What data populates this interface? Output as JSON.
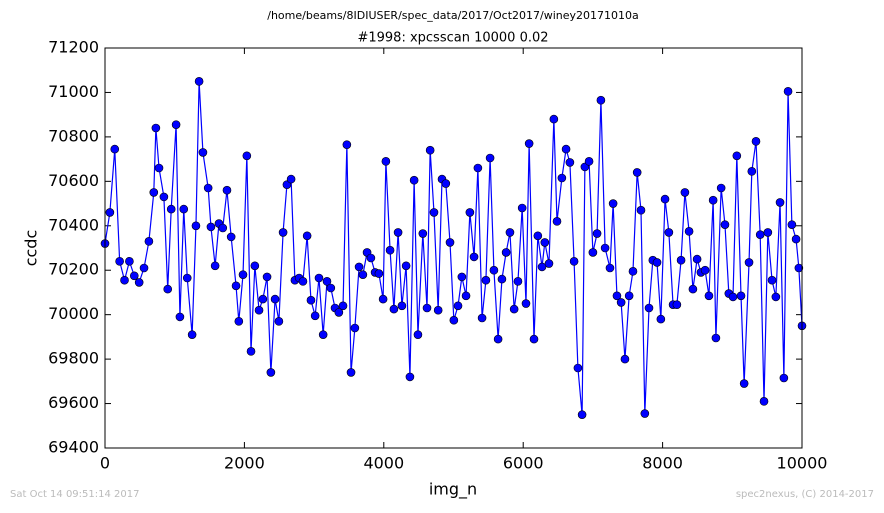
{
  "chart_data": {
    "type": "line",
    "suptitle": "/home/beams/8IDIUSER/spec_data/2017/Oct2017/winey20171010a",
    "title": "#1998: xpcsscan 10000 0.02",
    "x_label": "img_n",
    "y_label": "ccdc",
    "footer_left": "Sat Oct 14 09:51:14 2017",
    "footer_right": "spec2nexus, (C) 2014-2017",
    "xlim": [
      0,
      10000
    ],
    "xticks": [
      0,
      2000,
      4000,
      6000,
      8000,
      10000
    ],
    "ylim": [
      69400,
      71200
    ],
    "yticks": [
      69400,
      69600,
      69800,
      70000,
      70200,
      70400,
      70600,
      70800,
      71000,
      71200
    ],
    "grid": false,
    "x": [
      0,
      70,
      140,
      210,
      280,
      350,
      420,
      490,
      560,
      630,
      700,
      730,
      775,
      845,
      900,
      950,
      1020,
      1075,
      1130,
      1180,
      1250,
      1305,
      1350,
      1405,
      1480,
      1520,
      1580,
      1635,
      1690,
      1750,
      1810,
      1880,
      1920,
      1980,
      2035,
      2095,
      2150,
      2210,
      2265,
      2325,
      2380,
      2440,
      2495,
      2555,
      2610,
      2670,
      2725,
      2785,
      2840,
      2900,
      2955,
      3015,
      3070,
      3130,
      3185,
      3240,
      3300,
      3355,
      3415,
      3470,
      3530,
      3585,
      3645,
      3700,
      3760,
      3815,
      3875,
      3930,
      3990,
      4030,
      4090,
      4145,
      4205,
      4260,
      4320,
      4375,
      4435,
      4490,
      4560,
      4620,
      4665,
      4720,
      4780,
      4835,
      4890,
      4950,
      5005,
      5065,
      5120,
      5180,
      5235,
      5295,
      5350,
      5410,
      5465,
      5525,
      5580,
      5640,
      5695,
      5755,
      5810,
      5870,
      5925,
      5985,
      6040,
      6085,
      6155,
      6210,
      6270,
      6310,
      6370,
      6440,
      6485,
      6555,
      6615,
      6670,
      6730,
      6785,
      6845,
      6885,
      6945,
      7000,
      7060,
      7115,
      7175,
      7245,
      7290,
      7345,
      7405,
      7460,
      7520,
      7575,
      7635,
      7690,
      7745,
      7805,
      7860,
      7920,
      7975,
      8035,
      8090,
      8150,
      8205,
      8265,
      8320,
      8380,
      8435,
      8495,
      8550,
      8610,
      8665,
      8725,
      8765,
      8840,
      8895,
      8950,
      9010,
      9065,
      9125,
      9170,
      9240,
      9280,
      9340,
      9400,
      9455,
      9510,
      9570,
      9625,
      9685,
      9740,
      9800,
      9855,
      9915,
      9955,
      10000
    ],
    "series": [
      {
        "name": "ccdc",
        "color": "#0000ff",
        "values": [
          70320,
          70460,
          70745,
          70240,
          70155,
          70240,
          70175,
          70145,
          70210,
          70330,
          70550,
          70840,
          70660,
          70530,
          70115,
          70475,
          70855,
          69990,
          70475,
          70165,
          69910,
          70400,
          71050,
          70730,
          70570,
          70395,
          70220,
          70410,
          70390,
          70560,
          70350,
          70130,
          69970,
          70180,
          70715,
          69835,
          70220,
          70020,
          70070,
          70170,
          69740,
          70070,
          69970,
          70370,
          70585,
          70610,
          70155,
          70165,
          70150,
          70355,
          70065,
          69995,
          70165,
          69910,
          70150,
          70120,
          70030,
          70010,
          70040,
          70765,
          69740,
          69940,
          70215,
          70180,
          70280,
          70255,
          70190,
          70185,
          70070,
          70690,
          70290,
          70025,
          70370,
          70040,
          70220,
          69720,
          70605,
          69910,
          70365,
          70030,
          70740,
          70460,
          70020,
          70610,
          70590,
          70325,
          69975,
          70040,
          70170,
          70085,
          70460,
          70260,
          70660,
          69985,
          70155,
          70705,
          70200,
          69890,
          70160,
          70280,
          70370,
          70025,
          70150,
          70480,
          70050,
          70770,
          69890,
          70355,
          70215,
          70325,
          70230,
          70880,
          70420,
          70615,
          70745,
          70685,
          70240,
          69760,
          69550,
          70665,
          70690,
          70280,
          70365,
          70965,
          70300,
          70210,
          70500,
          70085,
          70055,
          69800,
          70085,
          70195,
          70640,
          70470,
          69555,
          70030,
          70245,
          70235,
          69980,
          70520,
          70370,
          70045,
          70045,
          70245,
          70550,
          70375,
          70115,
          70250,
          70190,
          70200,
          70085,
          70515,
          69895,
          70570,
          70405,
          70095,
          70080,
          70715,
          70085,
          69690,
          70235,
          70645,
          70780,
          70360,
          69610,
          70370,
          70155,
          70080,
          70505,
          69715,
          71005,
          70405,
          70340,
          70210,
          69950
        ]
      }
    ]
  }
}
